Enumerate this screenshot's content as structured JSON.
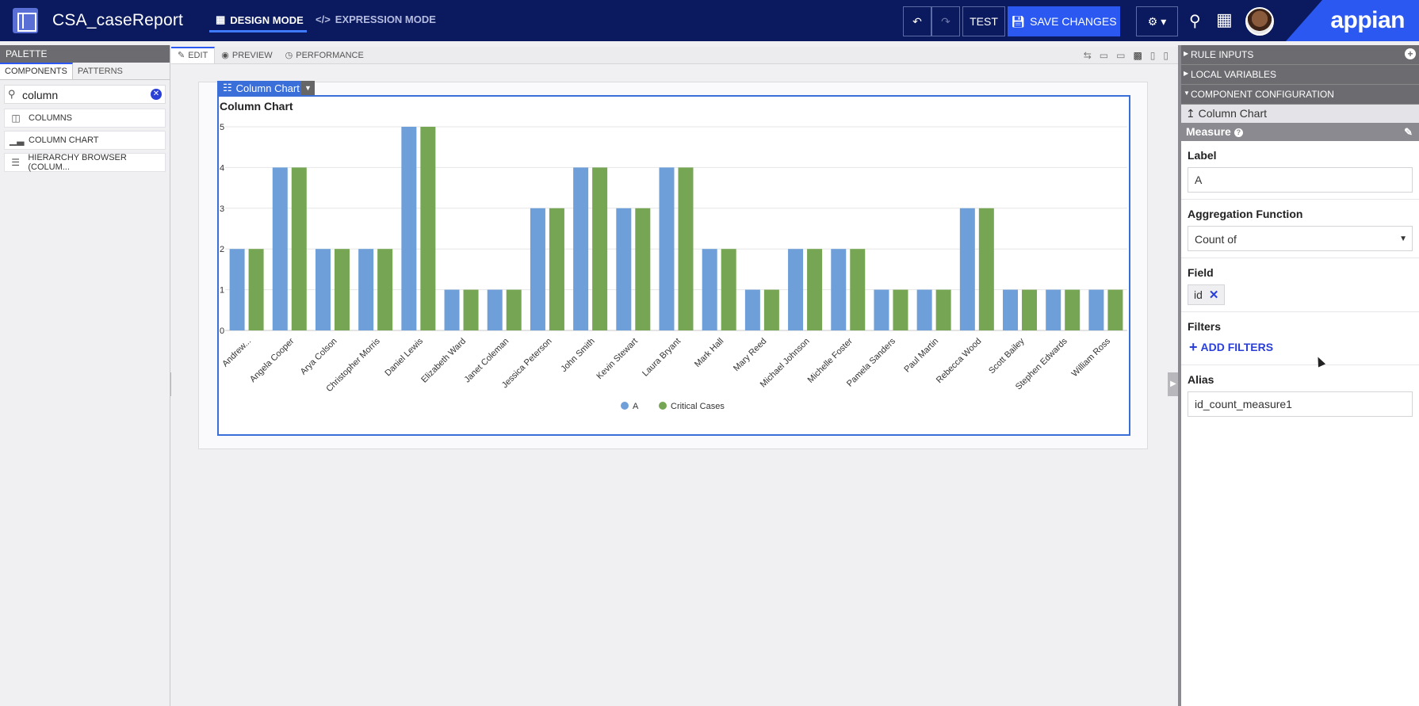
{
  "topbar": {
    "app_title": "CSA_caseReport",
    "design_mode": "DESIGN MODE",
    "expression_mode": "EXPRESSION MODE",
    "test_label": "TEST",
    "save_label": "SAVE CHANGES",
    "brand": "appian"
  },
  "palette": {
    "header": "PALETTE",
    "tabs": [
      "COMPONENTS",
      "PATTERNS"
    ],
    "search_value": "column",
    "items": [
      {
        "label": "COLUMNS",
        "icon": "columns-icon"
      },
      {
        "label": "COLUMN CHART",
        "icon": "bar-chart-icon"
      },
      {
        "label": "HIERARCHY BROWSER (COLUM...",
        "icon": "list-icon"
      }
    ]
  },
  "center": {
    "tabs": [
      "EDIT",
      "PREVIEW",
      "PERFORMANCE"
    ],
    "component_tag": "Column Chart"
  },
  "chart_data": {
    "type": "bar",
    "title": "Column Chart",
    "categories": [
      "Andrew...",
      "Angela Cooper",
      "Arya Colson",
      "Christopher Morris",
      "Daniel Lewis",
      "Elizabeth Ward",
      "Janet Coleman",
      "Jessica Peterson",
      "John Smith",
      "Kevin Stewart",
      "Laura Bryant",
      "Mark Hall",
      "Mary Reed",
      "Michael Johnson",
      "Michelle Foster",
      "Pamela Sanders",
      "Paul Martin",
      "Rebecca Wood",
      "Scott Bailey",
      "Stephen Edwards",
      "William Ross"
    ],
    "series": [
      {
        "name": "A",
        "color": "#6f9fd8",
        "values": [
          2,
          4,
          2,
          2,
          5,
          1,
          1,
          3,
          4,
          3,
          4,
          2,
          1,
          2,
          2,
          1,
          1,
          3,
          1,
          1,
          1
        ]
      },
      {
        "name": "Critical Cases",
        "color": "#76a654",
        "values": [
          2,
          4,
          2,
          2,
          5,
          1,
          1,
          3,
          4,
          3,
          4,
          2,
          1,
          2,
          2,
          1,
          1,
          3,
          1,
          1,
          1
        ]
      }
    ],
    "yticks": [
      "0",
      "1",
      "2",
      "3",
      "4",
      "5"
    ],
    "ylim": [
      0,
      5
    ],
    "grid": true,
    "legend": "bottom-center"
  },
  "config": {
    "sections": [
      "RULE INPUTS",
      "LOCAL VARIABLES",
      "COMPONENT CONFIGURATION"
    ],
    "breadcrumb": "Column Chart",
    "panel_title": "Measure",
    "label_title": "Label",
    "label_value": "A",
    "agg_title": "Aggregation Function",
    "agg_value": "Count of",
    "field_title": "Field",
    "field_value": "id",
    "filters_title": "Filters",
    "add_filters": "ADD FILTERS",
    "alias_title": "Alias",
    "alias_value": "id_count_measure1"
  }
}
